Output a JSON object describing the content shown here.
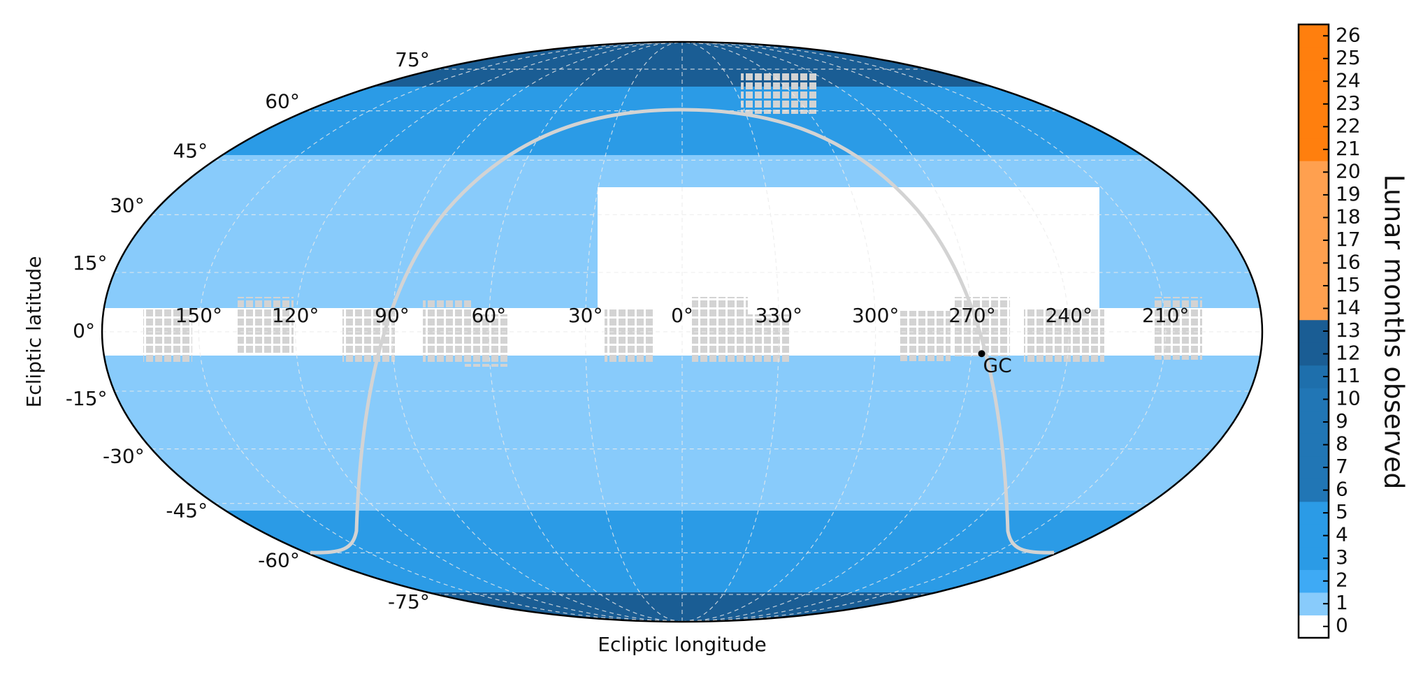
{
  "chart_data": {
    "type": "skymap",
    "projection": "mollweide",
    "xlabel": "Ecliptic longitude",
    "ylabel": "Ecliptic latitude",
    "grid": true,
    "xticks": [
      {
        "value": 150,
        "label": "150°"
      },
      {
        "value": 120,
        "label": "120°"
      },
      {
        "value": 90,
        "label": "90°"
      },
      {
        "value": 60,
        "label": "60°"
      },
      {
        "value": 30,
        "label": "30°"
      },
      {
        "value": 0,
        "label": "0°"
      },
      {
        "value": 330,
        "label": "330°"
      },
      {
        "value": 300,
        "label": "300°"
      },
      {
        "value": 270,
        "label": "270°"
      },
      {
        "value": 240,
        "label": "240°"
      },
      {
        "value": 210,
        "label": "210°"
      }
    ],
    "yticks": [
      {
        "value": 75,
        "label": "75°"
      },
      {
        "value": 60,
        "label": "60°"
      },
      {
        "value": 45,
        "label": "45°"
      },
      {
        "value": 30,
        "label": "30°"
      },
      {
        "value": 15,
        "label": "15°"
      },
      {
        "value": 0,
        "label": "0°"
      },
      {
        "value": -15,
        "label": "-15°"
      },
      {
        "value": -30,
        "label": "-30°"
      },
      {
        "value": -45,
        "label": "-45°"
      },
      {
        "value": -60,
        "label": "-60°"
      },
      {
        "value": -75,
        "label": "-75°"
      }
    ],
    "annotations": [
      {
        "lon": 266.8,
        "lat": -5.5,
        "text": "GC"
      }
    ],
    "colorbar": {
      "label": "Lunar months observed",
      "ticks": [
        0,
        1,
        2,
        3,
        4,
        5,
        6,
        7,
        8,
        9,
        10,
        11,
        12,
        13,
        14,
        15,
        16,
        17,
        18,
        19,
        20,
        21,
        22,
        23,
        24,
        25,
        26
      ],
      "colors": [
        "#ffffff",
        "#88cbfb",
        "#3eaaf5",
        "#2b9be6",
        "#2b9be6",
        "#2b9be6",
        "#2176b5",
        "#2176b5",
        "#2176b5",
        "#2176b5",
        "#2176b5",
        "#1e6fac",
        "#1a5d94",
        "#1a5d94",
        "#ffa04f",
        "#ffa04f",
        "#ffa04f",
        "#ffa04f",
        "#ffa04f",
        "#ffa04f",
        "#ffa04f",
        "#ff7f0e",
        "#ff7f0e",
        "#ff7f0e",
        "#ff7f0e",
        "#ff7f0e",
        "#ff7f0e"
      ]
    }
  }
}
